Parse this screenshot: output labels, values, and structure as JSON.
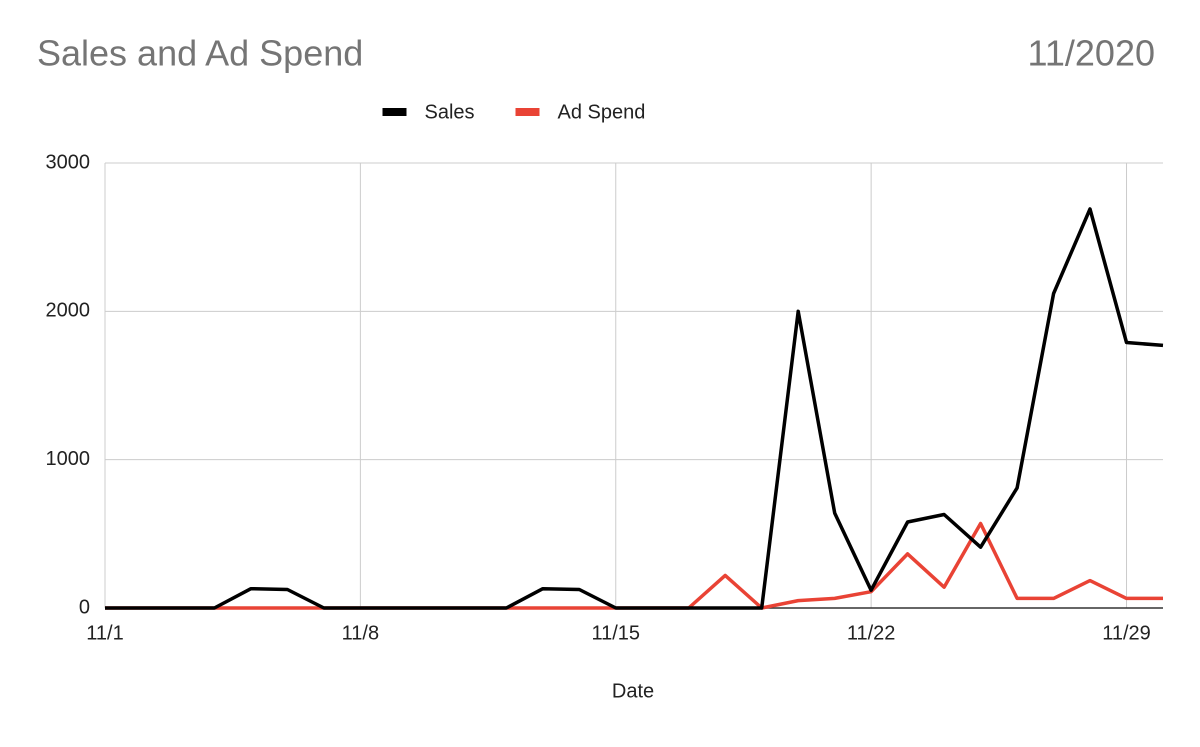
{
  "chart_data": {
    "type": "line",
    "title": "Sales and Ad Spend",
    "subtitle": "11/2020",
    "x_label": "Date",
    "categories": [
      "11/1",
      null,
      null,
      null,
      null,
      null,
      null,
      "11/8",
      null,
      null,
      null,
      null,
      null,
      null,
      "11/15",
      null,
      null,
      null,
      null,
      null,
      null,
      "11/22",
      null,
      null,
      null,
      null,
      null,
      null,
      "11/29",
      null
    ],
    "series": [
      {
        "name": "Sales",
        "color": "#000000",
        "values": [
          0,
          0,
          0,
          0,
          130,
          125,
          0,
          0,
          0,
          0,
          0,
          0,
          130,
          125,
          0,
          0,
          0,
          0,
          0,
          2000,
          640,
          120,
          580,
          630,
          410,
          810,
          2120,
          2690,
          1790,
          1770
        ]
      },
      {
        "name": "Ad Spend",
        "color": "#e94335",
        "values": [
          0,
          0,
          0,
          0,
          0,
          0,
          0,
          0,
          0,
          0,
          0,
          0,
          0,
          0,
          0,
          0,
          0,
          220,
          0,
          50,
          65,
          110,
          365,
          140,
          570,
          65,
          65,
          185,
          65,
          65
        ]
      }
    ],
    "ylim": [
      0,
      3000
    ],
    "yticks": [
      0,
      1000,
      2000,
      3000
    ],
    "grid": true,
    "legend": "top"
  }
}
